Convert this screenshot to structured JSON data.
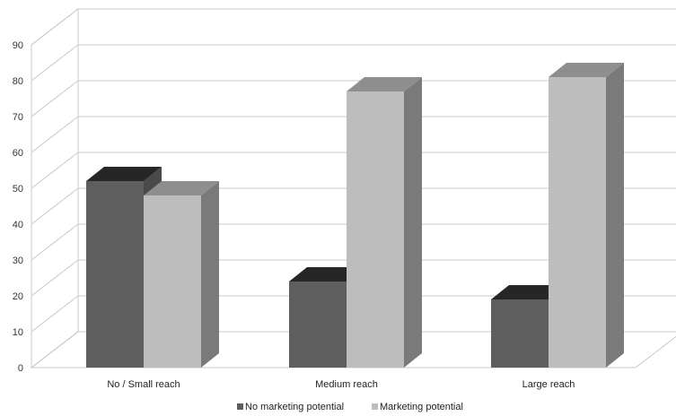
{
  "chart_data": {
    "type": "bar",
    "style": "3d-clustered-column",
    "categories": [
      "No / Small reach",
      "Medium reach",
      "Large reach"
    ],
    "series": [
      {
        "name": "No marketing potential",
        "values": [
          52,
          24,
          19
        ],
        "color": "#5e5e5e"
      },
      {
        "name": "Marketing potential",
        "values": [
          48,
          77,
          81
        ],
        "color": "#bdbdbd"
      }
    ],
    "yticks": [
      "0",
      "10",
      "20",
      "30",
      "40",
      "50",
      "60",
      "70",
      "80",
      "90"
    ],
    "ylim": [
      0,
      90
    ],
    "grid": true,
    "legend_position": "bottom"
  }
}
